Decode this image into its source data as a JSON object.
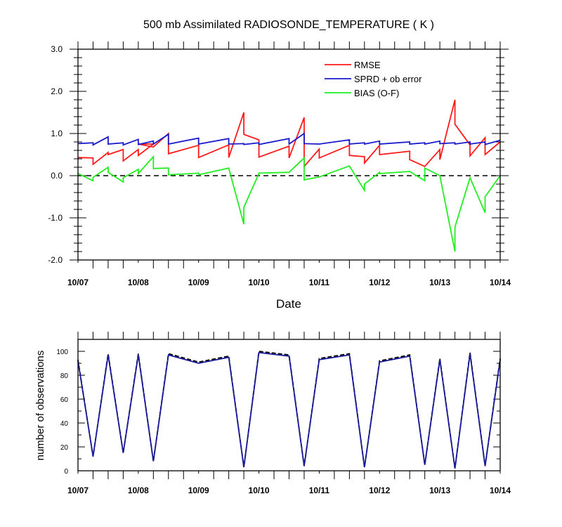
{
  "chart_data": [
    {
      "type": "line",
      "title": "500 mb Assimilated RADIOSONDE_TEMPERATURE ( K )",
      "xlabel": "Date",
      "ylabel": "",
      "xlim": [
        0,
        7
      ],
      "ylim": [
        -2.0,
        3.0
      ],
      "x_ticks": [
        0,
        1,
        2,
        3,
        4,
        5,
        6,
        7
      ],
      "x_tick_labels": [
        "10/07",
        "10/08",
        "10/09",
        "10/10",
        "10/11",
        "10/12",
        "10/13",
        "10/14"
      ],
      "y_ticks": [
        -2.0,
        -1.0,
        0.0,
        1.0,
        2.0,
        3.0
      ],
      "y_tick_labels": [
        "-2.0",
        "-1.0",
        "0.0",
        "1.0",
        "2.0",
        "3.0"
      ],
      "reference_line": {
        "y": 0,
        "style": "dashed",
        "color": "#000000"
      },
      "legend_position": "top-right",
      "series": [
        {
          "name": "RMSE",
          "color": "#ff1a1a",
          "points": [
            [
              0,
              0.43
            ],
            [
              0.25,
              0.42
            ],
            [
              0.25,
              0.27
            ],
            [
              0.5,
              0.55
            ],
            [
              0.5,
              0.5
            ],
            [
              0.75,
              0.62
            ],
            [
              0.75,
              0.35
            ],
            [
              1,
              0.62
            ],
            [
              1,
              0.48
            ],
            [
              1.25,
              0.75
            ],
            [
              1,
              0.75
            ],
            [
              1.25,
              0.68
            ],
            [
              1.5,
              1.0
            ],
            [
              1.5,
              0.52
            ],
            [
              2,
              0.72
            ],
            [
              2,
              0.43
            ],
            [
              2.5,
              0.73
            ],
            [
              2.5,
              0.43
            ],
            [
              2.75,
              1.5
            ],
            [
              2.75,
              0.98
            ],
            [
              3,
              0.85
            ],
            [
              3,
              0.44
            ],
            [
              3.5,
              0.7
            ],
            [
              3.5,
              0.42
            ],
            [
              3.75,
              1.38
            ],
            [
              3.75,
              0.22
            ],
            [
              4,
              0.63
            ],
            [
              4,
              0.42
            ],
            [
              4.5,
              0.72
            ],
            [
              4.5,
              0.48
            ],
            [
              4.75,
              0.45
            ],
            [
              4.75,
              0.3
            ],
            [
              5,
              0.72
            ],
            [
              5,
              0.5
            ],
            [
              5.5,
              0.58
            ],
            [
              5.5,
              0.38
            ],
            [
              5.75,
              0.22
            ],
            [
              6,
              0.62
            ],
            [
              6,
              0.38
            ],
            [
              6.25,
              1.8
            ],
            [
              6.25,
              1.22
            ],
            [
              6.5,
              0.73
            ],
            [
              6.5,
              0.47
            ],
            [
              6.75,
              0.9
            ],
            [
              6.75,
              0.5
            ],
            [
              7,
              0.8
            ]
          ]
        },
        {
          "name": "SPRD + ob error",
          "color": "#1a1acc",
          "points": [
            [
              0,
              0.76
            ],
            [
              0.25,
              0.78
            ],
            [
              0.25,
              0.73
            ],
            [
              0.5,
              0.92
            ],
            [
              0.5,
              0.75
            ],
            [
              0.75,
              0.78
            ],
            [
              0.75,
              0.73
            ],
            [
              1,
              0.86
            ],
            [
              1,
              0.74
            ],
            [
              1.25,
              0.82
            ],
            [
              1.25,
              0.75
            ],
            [
              1.5,
              0.98
            ],
            [
              1.5,
              0.75
            ],
            [
              2,
              0.89
            ],
            [
              2,
              0.75
            ],
            [
              2.5,
              0.88
            ],
            [
              2.5,
              0.75
            ],
            [
              2.75,
              0.76
            ],
            [
              2.75,
              0.74
            ],
            [
              3,
              0.78
            ],
            [
              3,
              0.74
            ],
            [
              3.5,
              0.88
            ],
            [
              3.5,
              0.75
            ],
            [
              3.75,
              1.0
            ],
            [
              3.75,
              0.76
            ],
            [
              4,
              0.75
            ],
            [
              4,
              0.75
            ],
            [
              4.5,
              0.85
            ],
            [
              4.5,
              0.75
            ],
            [
              4.75,
              0.78
            ],
            [
              4.75,
              0.75
            ],
            [
              5,
              0.82
            ],
            [
              5,
              0.75
            ],
            [
              5.5,
              0.8
            ],
            [
              5.5,
              0.75
            ],
            [
              5.75,
              0.78
            ],
            [
              5.75,
              0.75
            ],
            [
              6,
              0.82
            ],
            [
              6,
              0.76
            ],
            [
              6.25,
              0.78
            ],
            [
              6.25,
              0.75
            ],
            [
              6.5,
              0.8
            ],
            [
              6.5,
              0.75
            ],
            [
              6.75,
              0.8
            ],
            [
              6.75,
              0.74
            ],
            [
              7,
              0.84
            ]
          ]
        },
        {
          "name": "BIAS (O-F)",
          "color": "#22ee22",
          "points": [
            [
              0,
              0.05
            ],
            [
              0.25,
              -0.12
            ],
            [
              0.25,
              -0.04
            ],
            [
              0.5,
              0.2
            ],
            [
              0.5,
              0.08
            ],
            [
              0.75,
              -0.15
            ],
            [
              0.75,
              -0.05
            ],
            [
              1,
              0.15
            ],
            [
              1,
              0.05
            ],
            [
              1.25,
              0.45
            ],
            [
              1.25,
              0.17
            ],
            [
              1.5,
              0.18
            ],
            [
              1.5,
              0.02
            ],
            [
              2,
              0.06
            ],
            [
              2,
              0.02
            ],
            [
              2.5,
              0.18
            ],
            [
              2.75,
              -1.15
            ],
            [
              2.75,
              -0.75
            ],
            [
              3,
              0.05
            ],
            [
              3,
              0.06
            ],
            [
              3.5,
              0.08
            ],
            [
              3.75,
              0.42
            ],
            [
              3.75,
              -0.1
            ],
            [
              4,
              -0.03
            ],
            [
              4.5,
              0.23
            ],
            [
              4.75,
              -0.35
            ],
            [
              4.75,
              -0.2
            ],
            [
              5,
              0.08
            ],
            [
              5,
              0.05
            ],
            [
              5.5,
              0.1
            ],
            [
              5.75,
              -0.12
            ],
            [
              5.75,
              0.18
            ],
            [
              6,
              0.0
            ],
            [
              6.25,
              -1.8
            ],
            [
              6.25,
              -1.22
            ],
            [
              6.5,
              -0.05
            ],
            [
              6.75,
              -0.88
            ],
            [
              6.75,
              -0.5
            ],
            [
              7,
              0.0
            ]
          ]
        }
      ]
    },
    {
      "type": "line",
      "title": "",
      "xlabel": "",
      "ylabel": "number of observations",
      "xlim": [
        0,
        7
      ],
      "ylim": [
        0,
        110
      ],
      "x_ticks": [
        0,
        1,
        2,
        3,
        4,
        5,
        6,
        7
      ],
      "x_tick_labels": [
        "10/07",
        "10/08",
        "10/09",
        "10/10",
        "10/11",
        "10/12",
        "10/13",
        "10/14"
      ],
      "y_ticks": [
        0,
        20,
        40,
        60,
        80,
        100
      ],
      "y_tick_labels": [
        "0",
        "20",
        "40",
        "60",
        "80",
        "100"
      ],
      "series": [
        {
          "name": "",
          "style": "dashed",
          "color": "#000000",
          "points": [
            [
              0,
              93
            ],
            [
              0.25,
              12
            ],
            [
              0.5,
              98
            ],
            [
              0.75,
              15
            ],
            [
              1,
              98
            ],
            [
              1.25,
              8
            ],
            [
              1.5,
              98
            ],
            [
              2,
              91
            ],
            [
              2.5,
              96
            ],
            [
              2.75,
              3
            ],
            [
              3,
              100
            ],
            [
              3.5,
              97
            ],
            [
              3.75,
              4
            ],
            [
              4,
              94
            ],
            [
              4.5,
              98
            ],
            [
              4.75,
              3
            ],
            [
              5,
              92
            ],
            [
              5.5,
              97
            ],
            [
              5.75,
              5
            ],
            [
              6,
              94
            ],
            [
              6.25,
              2
            ],
            [
              6.5,
              99
            ],
            [
              6.75,
              4
            ],
            [
              7,
              94
            ]
          ]
        },
        {
          "name": "",
          "style": "solid",
          "color": "#1a1a99",
          "points": [
            [
              0,
              92
            ],
            [
              0.25,
              12
            ],
            [
              0.5,
              97
            ],
            [
              0.75,
              15
            ],
            [
              1,
              97
            ],
            [
              1.25,
              8
            ],
            [
              1.5,
              97
            ],
            [
              2,
              90
            ],
            [
              2.5,
              95
            ],
            [
              2.75,
              3
            ],
            [
              3,
              99
            ],
            [
              3.5,
              96
            ],
            [
              3.75,
              4
            ],
            [
              4,
              93
            ],
            [
              4.5,
              97
            ],
            [
              4.75,
              3
            ],
            [
              5,
              91
            ],
            [
              5.5,
              96
            ],
            [
              5.75,
              5
            ],
            [
              6,
              93
            ],
            [
              6.25,
              2
            ],
            [
              6.5,
              98
            ],
            [
              6.75,
              4
            ],
            [
              7,
              93
            ]
          ]
        }
      ]
    }
  ]
}
